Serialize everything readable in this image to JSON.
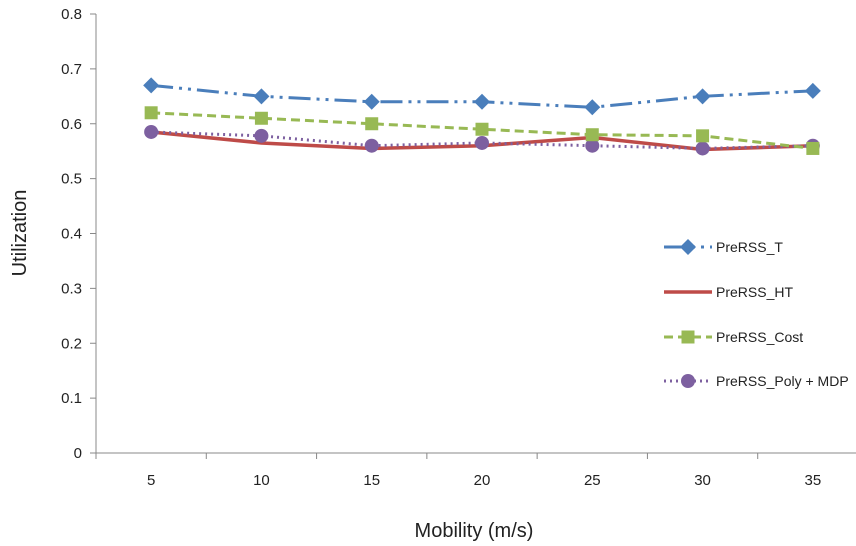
{
  "chart_data": {
    "type": "line",
    "title": "",
    "xlabel": "Mobility (m/s)",
    "ylabel": "Utilization",
    "categories": [
      "5",
      "10",
      "15",
      "20",
      "25",
      "30",
      "35"
    ],
    "ylim": [
      0,
      0.8
    ],
    "yticks": [
      "0",
      "0.1",
      "0.2",
      "0.3",
      "0.4",
      "0.5",
      "0.6",
      "0.7",
      "0.8"
    ],
    "grid": false,
    "legend": "right",
    "series": [
      {
        "name": "PreRSS_T",
        "color": "#4a7ebb",
        "marker": "diamond",
        "dash": "dash-dot-dot",
        "values": [
          0.67,
          0.65,
          0.64,
          0.64,
          0.63,
          0.65,
          0.66
        ]
      },
      {
        "name": "PreRSS_HT",
        "color": "#be4b48",
        "marker": "none",
        "dash": "solid",
        "values": [
          0.585,
          0.565,
          0.555,
          0.56,
          0.575,
          0.553,
          0.56
        ]
      },
      {
        "name": "PreRSS_Cost",
        "color": "#98b954",
        "marker": "square",
        "dash": "dash",
        "values": [
          0.62,
          0.61,
          0.6,
          0.59,
          0.58,
          0.578,
          0.555
        ]
      },
      {
        "name": "PreRSS_Poly + MDP",
        "color": "#7d60a0",
        "marker": "circle",
        "dash": "dot",
        "values": [
          0.585,
          0.578,
          0.56,
          0.565,
          0.56,
          0.555,
          0.56
        ]
      }
    ]
  }
}
